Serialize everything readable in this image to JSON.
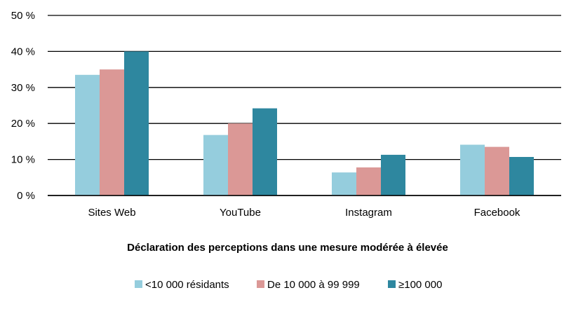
{
  "chart_data": {
    "type": "bar",
    "title": "",
    "xlabel": "Déclaration des perceptions dans une mesure modérée à élevée",
    "ylabel": "",
    "categories": [
      "Sites Web",
      "YouTube",
      "Instagram",
      "Facebook"
    ],
    "series": [
      {
        "name": "<10 000 résidants",
        "values": [
          33.5,
          16.8,
          6.4,
          14.1
        ],
        "color": "#95cddd"
      },
      {
        "name": "De 10 000 à 99 999",
        "values": [
          35.0,
          20.0,
          7.8,
          13.5
        ],
        "color": "#db9896"
      },
      {
        "name": "≥100 000",
        "values": [
          40.0,
          24.2,
          11.3,
          10.7
        ],
        "color": "#2e879f"
      }
    ],
    "ylim": [
      0,
      50
    ],
    "yticks": [
      {
        "value": 0,
        "label": "0 %"
      },
      {
        "value": 10,
        "label": "10 %"
      },
      {
        "value": 20,
        "label": "20 %"
      },
      {
        "value": 30,
        "label": "30 %"
      },
      {
        "value": 40,
        "label": "40 %"
      },
      {
        "value": 50,
        "label": "50 %"
      }
    ],
    "grid": true,
    "legend_position": "bottom"
  }
}
